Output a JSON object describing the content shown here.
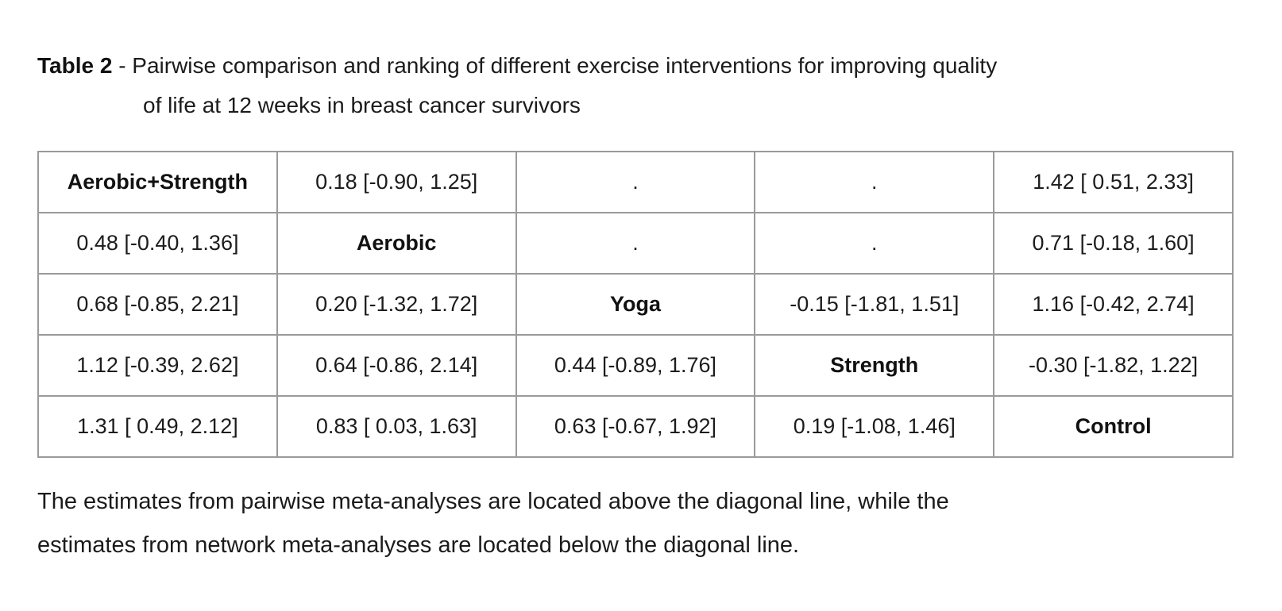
{
  "header": {
    "label": "Table 2",
    "title_line1": "- Pairwise comparison and ranking of different exercise interventions for improving quality",
    "title_line2": "of life at 12 weeks in breast cancer survivors"
  },
  "comparison_table": {
    "interventions": [
      "Aerobic+Strength",
      "Aerobic",
      "Yoga",
      "Strength",
      "Control"
    ],
    "rows": [
      [
        "Aerobic+Strength",
        "0.18 [-0.90, 1.25]",
        ".",
        ".",
        "1.42 [ 0.51, 2.33]"
      ],
      [
        "0.48 [-0.40, 1.36]",
        "Aerobic",
        ".",
        ".",
        "0.71 [-0.18, 1.60]"
      ],
      [
        "0.68 [-0.85, 2.21]",
        "0.20 [-1.32, 1.72]",
        "Yoga",
        "-0.15 [-1.81, 1.51]",
        "1.16 [-0.42, 2.74]"
      ],
      [
        "1.12 [-0.39, 2.62]",
        "0.64 [-0.86, 2.14]",
        "0.44 [-0.89, 1.76]",
        "Strength",
        "-0.30 [-1.82, 1.22]"
      ],
      [
        "1.31 [ 0.49, 2.12]",
        "0.83 [ 0.03, 1.63]",
        "0.63 [-0.67, 1.92]",
        "0.19 [-1.08, 1.46]",
        "Control"
      ]
    ]
  },
  "footnote": {
    "line1": "The estimates from pairwise meta-analyses are located above the diagonal line, while the",
    "line2": "estimates from network meta-analyses are located below the diagonal line."
  }
}
